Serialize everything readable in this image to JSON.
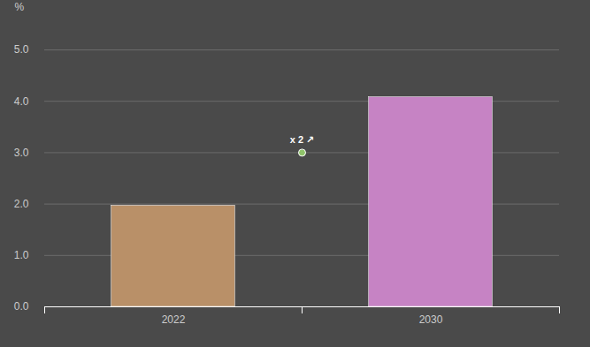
{
  "chart_data": {
    "type": "bar",
    "ylabel": "%",
    "categories": [
      "2022",
      "2030"
    ],
    "values": [
      1.97,
      4.08
    ],
    "colors": [
      "#b99068",
      "#c683c4"
    ],
    "ylim": [
      0,
      5
    ],
    "yticks": [
      0,
      1,
      2,
      3,
      4,
      5
    ],
    "grid": true,
    "annotations": [
      {
        "text": "x 2 ↗",
        "y": 3
      }
    ]
  }
}
